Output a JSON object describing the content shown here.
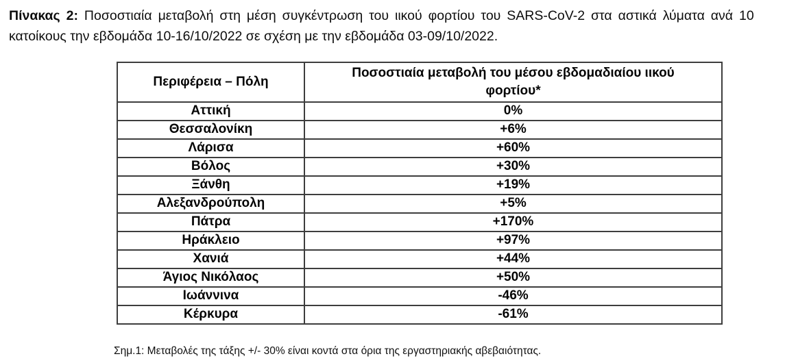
{
  "caption": {
    "bold_label": "Πίνακας 2:",
    "line1_rest": "Ποσοστιαία μεταβολή στη μέση συγκέντρωση του ιικού φορτίου του SARS-CoV-2 στα αστικά λύματα ανά 10",
    "line2": "κατοίκους την εβδομάδα 10-16/10/2022 σε σχέση με την εβδομάδα 03-09/10/2022."
  },
  "table": {
    "header_col1": "Περιφέρεια – Πόλη",
    "header_col2_line1": "Ποσοστιαία μεταβολή του μέσου εβδομαδιαίου ιικού",
    "header_col2_line2": "φορτίου*",
    "rows": [
      {
        "region": "Αττική",
        "change": "0%"
      },
      {
        "region": "Θεσσαλονίκη",
        "change": "+6%"
      },
      {
        "region": "Λάρισα",
        "change": "+60%"
      },
      {
        "region": "Βόλος",
        "change": "+30%"
      },
      {
        "region": "Ξάνθη",
        "change": "+19%"
      },
      {
        "region": "Αλεξανδρούπολη",
        "change": "+5%"
      },
      {
        "region": "Πάτρα",
        "change": "+170%"
      },
      {
        "region": "Ηράκλειο",
        "change": "+97%"
      },
      {
        "region": "Χανιά",
        "change": "+44%"
      },
      {
        "region": "Άγιος Νικόλαος",
        "change": "+50%"
      },
      {
        "region": "Ιωάννινα",
        "change": "-46%"
      },
      {
        "region": "Κέρκυρα",
        "change": "-61%"
      }
    ]
  },
  "footnote": "Σημ.1: Μεταβολές της τάξης +/- 30% είναι κοντά στα όρια της εργαστηριακής αβεβαιότητας.",
  "colors": {
    "text": "#000000",
    "table_border": "#3d3d3d",
    "background": "#ffffff"
  }
}
